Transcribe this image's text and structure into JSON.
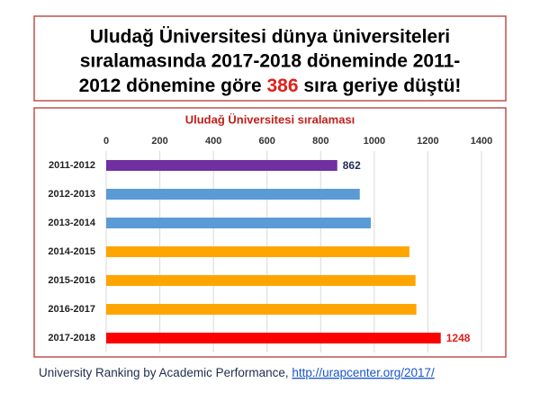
{
  "header": {
    "lines": [
      "Uludağ Üniversitesi dünya üniversiteleri",
      "sıralamasında 2017-2018 döneminde 2011-"
    ],
    "last_line": {
      "before": "2012 dönemine göre ",
      "highlight": 386,
      "after": " sıra geriye düştü!"
    }
  },
  "chart_data": {
    "type": "bar",
    "orientation": "horizontal",
    "title": "Uludağ Üniversitesi sıralaması",
    "categories": [
      "2011-2012",
      "2012-2013",
      "2013-2014",
      "2014-2015",
      "2015-2016",
      "2016-2017",
      "2017-2018"
    ],
    "values": [
      862,
      946,
      987,
      1131,
      1154,
      1157,
      1248
    ],
    "colors": [
      "#7030a0",
      "#5b9bd5",
      "#5b9bd5",
      "#ffa500",
      "#ffa500",
      "#ffa500",
      "#ff0000"
    ],
    "show_value_label": [
      true,
      false,
      false,
      false,
      false,
      false,
      true
    ],
    "value_label_colors": [
      "#1f2d5a",
      null,
      null,
      null,
      null,
      null,
      "#e0201b"
    ],
    "xlim": [
      0,
      1400
    ],
    "xticks": [
      0,
      200,
      400,
      600,
      800,
      1000,
      1200,
      1400
    ],
    "grid": true
  },
  "footer": {
    "text": "University Ranking by Academic Performance, ",
    "link": "http://urapcenter.org/2017/"
  }
}
